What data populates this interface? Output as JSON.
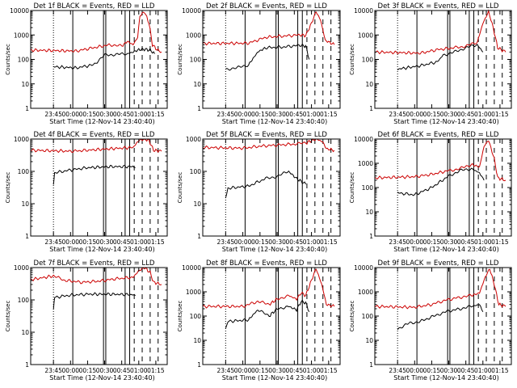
{
  "chart_data": [
    {
      "type": "line",
      "title": "Det 1f BLACK = Events, RED = LLD",
      "ylabel": "Counts/sec",
      "xlabel": "Start Time (12-Nov-14 23:40:40)",
      "yscale": "log",
      "ylim": [
        1,
        10000
      ],
      "x_ticks": [
        "23:45",
        "00:00",
        "00:15",
        "00:30",
        "00:45",
        "01:00",
        "01:15"
      ],
      "y_ticks": [
        "1",
        "10",
        "100",
        "1000",
        "10000"
      ],
      "series": [
        {
          "color": "#000000",
          "values": [
            [
              0,
              50
            ],
            [
              20,
              45
            ],
            [
              35,
              60
            ],
            [
              45,
              150
            ],
            [
              55,
              160
            ],
            [
              65,
              170
            ],
            [
              70,
              200
            ],
            [
              75,
              250
            ],
            [
              80,
              260
            ],
            [
              85,
              240
            ],
            [
              89,
              170
            ],
            [
              90,
              null
            ]
          ]
        },
        {
          "color": "#cc0000",
          "values": [
            [
              -20,
              240
            ],
            [
              20,
              220
            ],
            [
              35,
              300
            ],
            [
              50,
              400
            ],
            [
              60,
              350
            ],
            [
              65,
              550
            ],
            [
              70,
              400
            ],
            [
              74,
              800
            ],
            [
              76,
              6000
            ],
            [
              80,
              9000
            ],
            [
              84,
              3000
            ],
            [
              87,
              400
            ],
            [
              91,
              250
            ],
            [
              95,
              200
            ]
          ]
        }
      ]
    },
    {
      "type": "line",
      "title": "Det 2f BLACK = Events, RED = LLD",
      "ylabel": "Counts/sec",
      "xlabel": "Start Time (12-Nov-14 23:40:40)",
      "yscale": "log",
      "ylim": [
        1,
        10000
      ],
      "x_ticks": [
        "23:45",
        "00:00",
        "00:15",
        "00:30",
        "00:45",
        "01:00",
        "01:15"
      ],
      "y_ticks": [
        "1",
        "10",
        "100",
        "1000",
        "10000"
      ],
      "series": [
        {
          "color": "#000000",
          "values": [
            [
              0,
              40
            ],
            [
              10,
              45
            ],
            [
              20,
              60
            ],
            [
              28,
              200
            ],
            [
              35,
              300
            ],
            [
              50,
              320
            ],
            [
              65,
              380
            ],
            [
              70,
              350
            ],
            [
              73,
              100
            ]
          ]
        },
        {
          "color": "#cc0000",
          "values": [
            [
              -20,
              450
            ],
            [
              20,
              460
            ],
            [
              35,
              800
            ],
            [
              50,
              900
            ],
            [
              65,
              1000
            ],
            [
              70,
              950
            ],
            [
              75,
              3000
            ],
            [
              79,
              9000
            ],
            [
              83,
              4000
            ],
            [
              87,
              600
            ],
            [
              95,
              400
            ]
          ]
        }
      ]
    },
    {
      "type": "line",
      "title": "Det 3f BLACK = Events, RED = LLD",
      "ylabel": "Counts/sec",
      "xlabel": "Start Time (12-Nov-14 23:40:40)",
      "yscale": "log",
      "ylim": [
        1,
        10000
      ],
      "x_ticks": [
        "23:45",
        "00:00",
        "00:15",
        "00:30",
        "00:45",
        "01:00",
        "01:15"
      ],
      "y_ticks": [
        "1",
        "10",
        "100",
        "1000",
        "10000"
      ],
      "series": [
        {
          "color": "#000000",
          "values": [
            [
              0,
              40
            ],
            [
              20,
              55
            ],
            [
              35,
              80
            ],
            [
              40,
              150
            ],
            [
              50,
              200
            ],
            [
              60,
              300
            ],
            [
              70,
              400
            ],
            [
              75,
              200
            ]
          ]
        },
        {
          "color": "#cc0000",
          "values": [
            [
              -20,
              200
            ],
            [
              20,
              180
            ],
            [
              35,
              250
            ],
            [
              50,
              300
            ],
            [
              60,
              350
            ],
            [
              70,
              500
            ],
            [
              75,
              3000
            ],
            [
              80,
              9000
            ],
            [
              84,
              2000
            ],
            [
              88,
              300
            ],
            [
              95,
              200
            ]
          ]
        }
      ]
    },
    {
      "type": "line",
      "title": "Det 4f BLACK = Events, RED = LLD",
      "ylabel": "Counts/sec",
      "xlabel": "Start Time (12-Nov-14 23:40:40)",
      "yscale": "log",
      "ylim": [
        1,
        1000
      ],
      "x_ticks": [
        "23:45",
        "00:00",
        "00:15",
        "00:30",
        "00:45",
        "01:00",
        "01:15"
      ],
      "y_ticks": [
        "1",
        "10",
        "100",
        "1000"
      ],
      "series": [
        {
          "color": "#000000",
          "values": [
            [
              0,
              40
            ],
            [
              1,
              90
            ],
            [
              15,
              110
            ],
            [
              30,
              130
            ],
            [
              50,
              140
            ],
            [
              70,
              140
            ],
            [
              72,
              130
            ]
          ]
        },
        {
          "color": "#cc0000",
          "values": [
            [
              -20,
              450
            ],
            [
              15,
              420
            ],
            [
              30,
              450
            ],
            [
              50,
              500
            ],
            [
              70,
              550
            ],
            [
              75,
              900
            ],
            [
              80,
              1000
            ],
            [
              84,
              900
            ],
            [
              88,
              450
            ],
            [
              95,
              420
            ]
          ]
        }
      ]
    },
    {
      "type": "line",
      "title": "Det 5f BLACK = Events, RED = LLD",
      "ylabel": "Counts/sec",
      "xlabel": "Start Time (12-Nov-14 23:40:40)",
      "yscale": "log",
      "ylim": [
        1,
        1000
      ],
      "x_ticks": [
        "23:45",
        "00:00",
        "00:15",
        "00:30",
        "00:45",
        "01:00",
        "01:15"
      ],
      "y_ticks": [
        "1",
        "10",
        "100",
        "1000"
      ],
      "series": [
        {
          "color": "#000000",
          "values": [
            [
              0,
              15
            ],
            [
              2,
              30
            ],
            [
              20,
              35
            ],
            [
              35,
              60
            ],
            [
              45,
              70
            ],
            [
              55,
              100
            ],
            [
              62,
              60
            ],
            [
              70,
              40
            ]
          ]
        },
        {
          "color": "#cc0000",
          "values": [
            [
              -20,
              550
            ],
            [
              15,
              520
            ],
            [
              30,
              600
            ],
            [
              45,
              650
            ],
            [
              60,
              700
            ],
            [
              70,
              750
            ],
            [
              75,
              900
            ],
            [
              80,
              1000
            ],
            [
              85,
              800
            ],
            [
              88,
              500
            ],
            [
              95,
              450
            ]
          ]
        }
      ]
    },
    {
      "type": "line",
      "title": "Det 6f BLACK = Events, RED = LLD",
      "ylabel": "Counts/sec",
      "xlabel": "Start Time (12-Nov-14 23:40:40)",
      "yscale": "log",
      "ylim": [
        1,
        10000
      ],
      "x_ticks": [
        "23:45",
        "00:00",
        "00:15",
        "00:30",
        "00:45",
        "01:00",
        "01:15"
      ],
      "y_ticks": [
        "1",
        "10",
        "100",
        "1000",
        "10000"
      ],
      "series": [
        {
          "color": "#000000",
          "values": [
            [
              0,
              60
            ],
            [
              15,
              50
            ],
            [
              30,
              100
            ],
            [
              45,
              300
            ],
            [
              55,
              500
            ],
            [
              65,
              600
            ],
            [
              72,
              400
            ],
            [
              76,
              200
            ]
          ]
        },
        {
          "color": "#cc0000",
          "values": [
            [
              -20,
              250
            ],
            [
              15,
              280
            ],
            [
              30,
              350
            ],
            [
              45,
              500
            ],
            [
              55,
              600
            ],
            [
              65,
              900
            ],
            [
              72,
              700
            ],
            [
              76,
              5000
            ],
            [
              80,
              9000
            ],
            [
              85,
              1500
            ],
            [
              88,
              250
            ],
            [
              95,
              200
            ]
          ]
        }
      ]
    },
    {
      "type": "line",
      "title": "Det 7f BLACK = Events, RED = LLD",
      "ylabel": "Counts/sec",
      "xlabel": "Start Time (12-Nov-14 23:40:40)",
      "yscale": "log",
      "ylim": [
        1,
        1000
      ],
      "x_ticks": [
        "23:45",
        "00:00",
        "00:15",
        "00:30",
        "00:45",
        "01:00",
        "01:15"
      ],
      "y_ticks": [
        "1",
        "10",
        "100",
        "1000"
      ],
      "series": [
        {
          "color": "#000000",
          "values": [
            [
              0,
              50
            ],
            [
              1,
              120
            ],
            [
              15,
              140
            ],
            [
              30,
              150
            ],
            [
              50,
              150
            ],
            [
              70,
              145
            ],
            [
              72,
              135
            ]
          ]
        },
        {
          "color": "#cc0000",
          "values": [
            [
              -20,
              420
            ],
            [
              0,
              550
            ],
            [
              10,
              400
            ],
            [
              25,
              350
            ],
            [
              40,
              380
            ],
            [
              55,
              450
            ],
            [
              70,
              500
            ],
            [
              75,
              800
            ],
            [
              80,
              1000
            ],
            [
              85,
              700
            ],
            [
              88,
              350
            ],
            [
              95,
              300
            ]
          ]
        }
      ]
    },
    {
      "type": "line",
      "title": "Det 8f BLACK = Events, RED = LLD",
      "ylabel": "Counts/sec",
      "xlabel": "Start Time (12-Nov-14 23:40:40)",
      "yscale": "log",
      "ylim": [
        1,
        10000
      ],
      "x_ticks": [
        "23:45",
        "00:00",
        "00:15",
        "00:30",
        "00:45",
        "01:00",
        "01:15"
      ],
      "y_ticks": [
        "1",
        "10",
        "100",
        "1000",
        "10000"
      ],
      "series": [
        {
          "color": "#000000",
          "values": [
            [
              0,
              30
            ],
            [
              2,
              60
            ],
            [
              20,
              70
            ],
            [
              28,
              180
            ],
            [
              38,
              100
            ],
            [
              45,
              200
            ],
            [
              55,
              250
            ],
            [
              62,
              180
            ],
            [
              66,
              400
            ],
            [
              70,
              350
            ],
            [
              73,
              150
            ]
          ]
        },
        {
          "color": "#cc0000",
          "values": [
            [
              -20,
              250
            ],
            [
              15,
              250
            ],
            [
              28,
              400
            ],
            [
              38,
              300
            ],
            [
              45,
              500
            ],
            [
              55,
              700
            ],
            [
              62,
              500
            ],
            [
              66,
              900
            ],
            [
              70,
              700
            ],
            [
              75,
              3000
            ],
            [
              79,
              9000
            ],
            [
              84,
              2000
            ],
            [
              88,
              300
            ],
            [
              95,
              250
            ]
          ]
        }
      ]
    },
    {
      "type": "line",
      "title": "Det 9f BLACK = Events, RED = LLD",
      "ylabel": "Counts/sec",
      "xlabel": "Start Time (12-Nov-14 23:40:40)",
      "yscale": "log",
      "ylim": [
        1,
        10000
      ],
      "x_ticks": [
        "23:45",
        "00:00",
        "00:15",
        "00:30",
        "00:45",
        "01:00",
        "01:15"
      ],
      "y_ticks": [
        "1",
        "10",
        "100",
        "1000",
        "10000"
      ],
      "series": [
        {
          "color": "#000000",
          "values": [
            [
              0,
              30
            ],
            [
              10,
              50
            ],
            [
              20,
              60
            ],
            [
              32,
              100
            ],
            [
              42,
              150
            ],
            [
              55,
              200
            ],
            [
              65,
              250
            ],
            [
              72,
              300
            ],
            [
              75,
              150
            ]
          ]
        },
        {
          "color": "#cc0000",
          "values": [
            [
              -20,
              250
            ],
            [
              15,
              230
            ],
            [
              30,
              300
            ],
            [
              42,
              450
            ],
            [
              55,
              600
            ],
            [
              65,
              700
            ],
            [
              72,
              900
            ],
            [
              77,
              4000
            ],
            [
              81,
              9000
            ],
            [
              85,
              2000
            ],
            [
              89,
              300
            ],
            [
              95,
              250
            ]
          ]
        }
      ]
    }
  ]
}
